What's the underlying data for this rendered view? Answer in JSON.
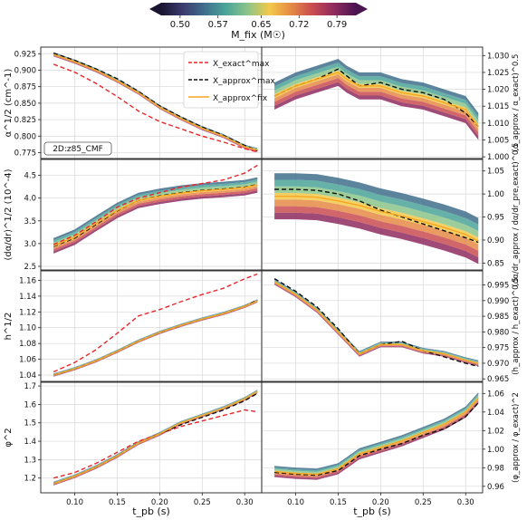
{
  "colorbar": {
    "label": "M_fix (M☉)",
    "ticks": [
      "0.50",
      "0.57",
      "0.65",
      "0.72",
      "0.79"
    ],
    "range": [
      0.465,
      0.825
    ],
    "colors": [
      "#1a1431",
      "#3b3a6e",
      "#3f6e8c",
      "#4ba59a",
      "#8cc488",
      "#f3c94a",
      "#e58a45",
      "#c94c50",
      "#8f2a5f",
      "#4a1450"
    ]
  },
  "xaxis": {
    "label": "t_pb (s)",
    "ticks": [
      "0.10",
      "0.15",
      "0.20",
      "0.25",
      "0.30"
    ],
    "range": [
      0.06,
      0.32
    ]
  },
  "legend": {
    "entries": [
      {
        "label": "X_exact^max",
        "color": "#e8262b",
        "style": "dashed"
      },
      {
        "label": "X_approx^max",
        "color": "#111111",
        "style": "dashed"
      },
      {
        "label": "X_approx^fix",
        "color": "#f5a623",
        "style": "solid"
      }
    ]
  },
  "chart_data": [
    {
      "type": "line",
      "panel": "left-1",
      "ylabel": "α^1/2 (cm^-1)",
      "yticks": [
        "0.775",
        "0.800",
        "0.825",
        "0.850",
        "0.875",
        "0.900",
        "0.925"
      ],
      "ylim": [
        0.766,
        0.935
      ],
      "annotation": "2D:z85_CMF",
      "x": [
        0.075,
        0.1,
        0.125,
        0.15,
        0.175,
        0.2,
        0.225,
        0.25,
        0.275,
        0.3,
        0.315
      ],
      "series": [
        {
          "name": "X_exact^max",
          "values": [
            0.909,
            0.897,
            0.88,
            0.86,
            0.838,
            0.822,
            0.811,
            0.8,
            0.791,
            0.781,
            0.776
          ]
        },
        {
          "name": "X_approx^max",
          "values": [
            0.926,
            0.915,
            0.902,
            0.887,
            0.868,
            0.846,
            0.829,
            0.814,
            0.801,
            0.786,
            0.778
          ]
        },
        {
          "name": "X_approx^fix",
          "values": [
            0.924,
            0.913,
            0.9,
            0.884,
            0.866,
            0.844,
            0.827,
            0.812,
            0.8,
            0.784,
            0.779
          ],
          "band": 0.003
        }
      ]
    },
    {
      "type": "line",
      "panel": "right-1",
      "ylabel": "(α_approx / α_exact)^0.5",
      "yticks": [
        "1.000",
        "1.005",
        "1.010",
        "1.015",
        "1.020",
        "1.025",
        "1.030"
      ],
      "ylim": [
        0.9995,
        1.0325
      ],
      "x": [
        0.075,
        0.1,
        0.125,
        0.15,
        0.16,
        0.175,
        0.2,
        0.225,
        0.25,
        0.275,
        0.3,
        0.315
      ],
      "series": [
        {
          "name": "X_approx^max",
          "values": [
            1.018,
            1.021,
            1.023,
            1.026,
            1.024,
            1.021,
            1.022,
            1.02,
            1.019,
            1.017,
            1.013,
            1.009
          ]
        },
        {
          "name": "X_approx^fix",
          "values": [
            1.018,
            1.021,
            1.023,
            1.025,
            1.023,
            1.021,
            1.021,
            1.019,
            1.018,
            1.016,
            1.014,
            1.009
          ],
          "band": 0.004
        }
      ]
    },
    {
      "type": "line",
      "panel": "left-2",
      "ylabel": "(dα/dr)^1/2 (10^-4)",
      "yticks": [
        "2.5",
        "3.0",
        "3.5",
        "4.0",
        "4.5"
      ],
      "ylim": [
        2.42,
        4.85
      ],
      "x": [
        0.075,
        0.1,
        0.125,
        0.15,
        0.175,
        0.2,
        0.225,
        0.25,
        0.275,
        0.3,
        0.315
      ],
      "series": [
        {
          "name": "X_exact^max",
          "values": [
            2.98,
            3.18,
            3.48,
            3.8,
            4.0,
            4.12,
            4.24,
            4.32,
            4.4,
            4.55,
            4.72
          ]
        },
        {
          "name": "X_approx^max",
          "values": [
            2.94,
            3.12,
            3.42,
            3.72,
            3.95,
            4.05,
            4.12,
            4.17,
            4.2,
            4.24,
            4.3
          ]
        },
        {
          "name": "X_approx^fix",
          "values": [
            2.95,
            3.14,
            3.44,
            3.73,
            3.95,
            4.04,
            4.11,
            4.16,
            4.19,
            4.23,
            4.29
          ],
          "band": 0.17
        }
      ]
    },
    {
      "type": "line",
      "panel": "right-2",
      "ylabel": "(dα/dr_approx / dα/dr_pre,exact)^0.5",
      "yticks": [
        "0.85",
        "0.90",
        "0.95",
        "1.00",
        "1.05"
      ],
      "ylim": [
        0.835,
        1.075
      ],
      "x": [
        0.075,
        0.1,
        0.125,
        0.15,
        0.175,
        0.2,
        0.225,
        0.25,
        0.275,
        0.3,
        0.315
      ],
      "series": [
        {
          "name": "X_approx^max",
          "values": [
            1.01,
            1.01,
            1.008,
            1.0,
            0.985,
            0.965,
            0.95,
            0.935,
            0.92,
            0.905,
            0.895
          ]
        },
        {
          "name": "X_approx^fix",
          "values": [
            0.995,
            0.995,
            0.993,
            0.985,
            0.975,
            0.962,
            0.952,
            0.94,
            0.927,
            0.912,
            0.898
          ],
          "band": 0.05
        }
      ]
    },
    {
      "type": "line",
      "panel": "left-3",
      "ylabel": "h^1/2",
      "yticks": [
        "1.04",
        "1.06",
        "1.08",
        "1.10",
        "1.12",
        "1.14",
        "1.16"
      ],
      "ylim": [
        1.032,
        1.172
      ],
      "x": [
        0.075,
        0.1,
        0.125,
        0.15,
        0.175,
        0.2,
        0.225,
        0.25,
        0.275,
        0.3,
        0.315
      ],
      "series": [
        {
          "name": "X_exact^max",
          "values": [
            1.044,
            1.056,
            1.072,
            1.093,
            1.115,
            1.123,
            1.133,
            1.142,
            1.15,
            1.162,
            1.168
          ]
        },
        {
          "name": "X_approx^max",
          "values": [
            1.04,
            1.048,
            1.058,
            1.07,
            1.083,
            1.094,
            1.103,
            1.111,
            1.118,
            1.127,
            1.135
          ]
        },
        {
          "name": "X_approx^fix",
          "values": [
            1.04,
            1.048,
            1.058,
            1.07,
            1.083,
            1.094,
            1.103,
            1.111,
            1.118,
            1.127,
            1.134
          ],
          "band": 0.002
        }
      ]
    },
    {
      "type": "line",
      "panel": "right-3",
      "ylabel": "(h_approx / h_exact)^0.5",
      "yticks": [
        "0.965",
        "0.970",
        "0.975",
        "0.980",
        "0.985",
        "0.990",
        "0.995"
      ],
      "ylim": [
        0.9642,
        0.9995
      ],
      "x": [
        0.075,
        0.1,
        0.125,
        0.15,
        0.175,
        0.2,
        0.225,
        0.25,
        0.275,
        0.3,
        0.315
      ],
      "series": [
        {
          "name": "X_approx^max",
          "values": [
            0.997,
            0.993,
            0.988,
            0.981,
            0.973,
            0.976,
            0.977,
            0.974,
            0.972,
            0.97,
            0.969
          ]
        },
        {
          "name": "X_approx^fix",
          "values": [
            0.996,
            0.992,
            0.987,
            0.98,
            0.973,
            0.976,
            0.976,
            0.974,
            0.973,
            0.971,
            0.97
          ],
          "band": 0.0009
        }
      ]
    },
    {
      "type": "line",
      "panel": "left-4",
      "ylabel": "φ^2",
      "yticks": [
        "1.2",
        "1.3",
        "1.4",
        "1.5",
        "1.6",
        "1.7"
      ],
      "ylim": [
        1.12,
        1.72
      ],
      "x": [
        0.075,
        0.1,
        0.125,
        0.15,
        0.175,
        0.2,
        0.225,
        0.25,
        0.275,
        0.3,
        0.315
      ],
      "series": [
        {
          "name": "X_exact^max",
          "values": [
            1.2,
            1.23,
            1.28,
            1.34,
            1.4,
            1.44,
            1.48,
            1.51,
            1.54,
            1.57,
            1.56
          ]
        },
        {
          "name": "X_approx^max",
          "values": [
            1.17,
            1.21,
            1.26,
            1.32,
            1.39,
            1.44,
            1.49,
            1.53,
            1.57,
            1.62,
            1.66
          ]
        },
        {
          "name": "X_approx^fix",
          "values": [
            1.17,
            1.21,
            1.26,
            1.32,
            1.39,
            1.44,
            1.5,
            1.54,
            1.58,
            1.63,
            1.67
          ],
          "band": 0.01
        }
      ]
    },
    {
      "type": "line",
      "panel": "right-4",
      "ylabel": "(φ_approx / φ_exact)^2",
      "yticks": [
        "0.96",
        "0.98",
        "1.00",
        "1.02",
        "1.04",
        "1.06"
      ],
      "ylim": [
        0.953,
        1.072
      ],
      "x": [
        0.075,
        0.1,
        0.125,
        0.15,
        0.175,
        0.2,
        0.225,
        0.25,
        0.275,
        0.3,
        0.315
      ],
      "series": [
        {
          "name": "X_approx^max",
          "values": [
            0.975,
            0.973,
            0.972,
            0.977,
            0.993,
            1.0,
            1.006,
            1.015,
            1.022,
            1.035,
            1.05
          ]
        },
        {
          "name": "X_approx^fix",
          "values": [
            0.976,
            0.974,
            0.973,
            0.979,
            0.995,
            1.002,
            1.009,
            1.018,
            1.027,
            1.04,
            1.055
          ],
          "band": 0.006
        }
      ]
    }
  ]
}
